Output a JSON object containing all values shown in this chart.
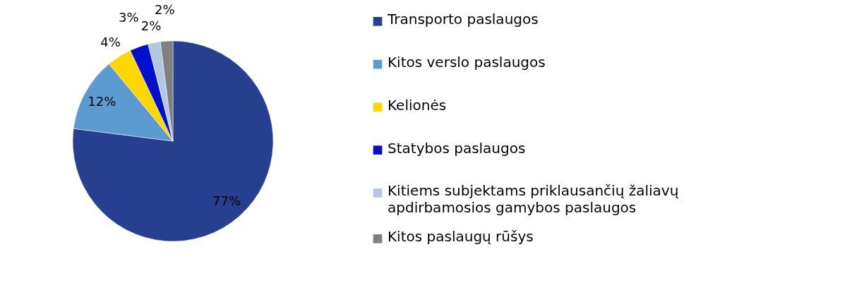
{
  "chart_data": {
    "type": "pie",
    "categories": [
      "Transporto paslaugos",
      "Kitos verslo paslaugos",
      "Kelionės",
      "Statybos paslaugos",
      "Kitiems subjektams priklausančių žaliavų apdirbamosios gamybos paslaugos",
      "Kitos paslaugų rūšys"
    ],
    "values": [
      77,
      12,
      4,
      3,
      2,
      2
    ],
    "value_labels": [
      "77%",
      "12%",
      "4%",
      "3%",
      "2%",
      "2%"
    ],
    "colors": [
      "#263f8e",
      "#5b9bd0",
      "#ffd700",
      "#0010cc",
      "#b4c6e0",
      "#808080"
    ],
    "legend": "right"
  }
}
